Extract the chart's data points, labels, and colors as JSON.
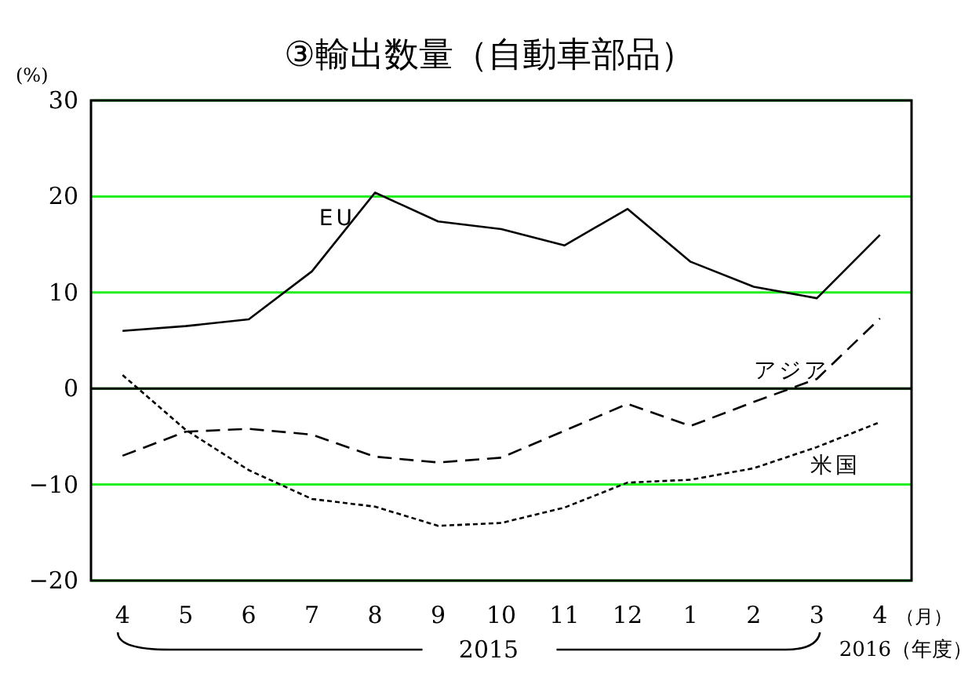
{
  "chart_data": {
    "type": "line",
    "title": "③輸出数量（自動車部品）",
    "ylabel": "(%)",
    "categories": [
      "4",
      "5",
      "6",
      "7",
      "8",
      "9",
      "10",
      "11",
      "12",
      "1",
      "2",
      "3",
      "4"
    ],
    "series": [
      {
        "name": "EU",
        "color": "#000000",
        "line_style": "solid",
        "values": [
          6.0,
          6.5,
          7.2,
          12.2,
          20.4,
          17.4,
          16.6,
          14.9,
          18.7,
          13.2,
          10.6,
          9.4,
          16.0
        ]
      },
      {
        "name": "アジア",
        "color": "#000000",
        "line_style": "dashed",
        "values": [
          -7.0,
          -4.5,
          -4.2,
          -4.8,
          -7.1,
          -7.7,
          -7.2,
          -4.4,
          -1.6,
          -3.9,
          -1.4,
          1.0,
          7.3
        ]
      },
      {
        "name": "米国",
        "color": "#000000",
        "line_style": "dotted",
        "values": [
          1.4,
          -4.3,
          -8.5,
          -11.5,
          -12.3,
          -14.3,
          -14.0,
          -12.4,
          -9.8,
          -9.5,
          -8.3,
          -6.1,
          -3.5
        ]
      }
    ],
    "ylim": [
      -20,
      30
    ],
    "yticks": [
      -20,
      -10,
      0,
      10,
      20,
      30
    ],
    "grid": "y",
    "legend": false,
    "marker": "none",
    "ref_lines": [
      {
        "axis": "y",
        "value": 0,
        "label": null,
        "color": "#000000"
      }
    ],
    "annotations": [
      "（月）",
      "2015",
      "2016（年度）"
    ]
  }
}
